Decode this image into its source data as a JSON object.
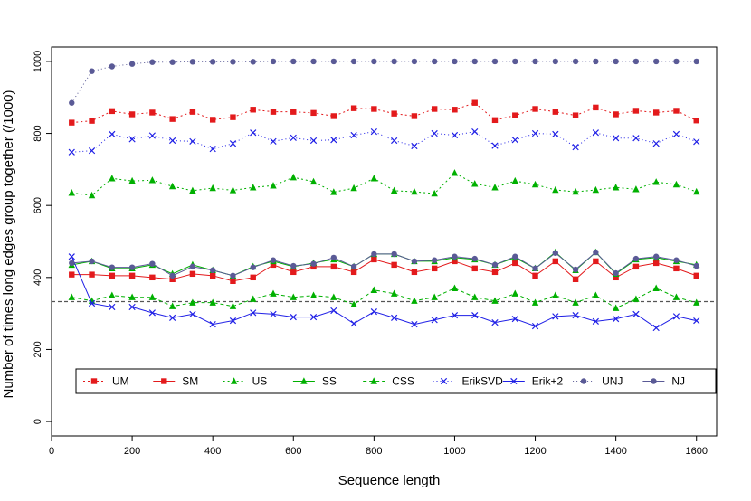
{
  "chart_data": {
    "type": "line",
    "title": "",
    "xlabel": "Sequence length",
    "ylabel": "Number of times long edges group together (/1000)",
    "xlim": [
      0,
      1650
    ],
    "ylim": [
      -40,
      1040
    ],
    "xticks": [
      0,
      200,
      400,
      600,
      800,
      1000,
      1200,
      1400,
      1600
    ],
    "yticks": [
      0,
      200,
      400,
      600,
      800,
      1000
    ],
    "reference_line": 333,
    "grid": false,
    "legend_position": "bottom",
    "x": [
      50,
      100,
      150,
      200,
      250,
      300,
      350,
      400,
      450,
      500,
      550,
      600,
      650,
      700,
      750,
      800,
      850,
      900,
      950,
      1000,
      1050,
      1100,
      1150,
      1200,
      1250,
      1300,
      1350,
      1400,
      1450,
      1500,
      1550,
      1600
    ],
    "series": [
      {
        "name": "UM",
        "color": "#e31a1c",
        "marker": "square",
        "dash": "2,3",
        "values": [
          830,
          835,
          862,
          853,
          858,
          840,
          860,
          838,
          845,
          866,
          860,
          860,
          857,
          848,
          870,
          868,
          855,
          848,
          868,
          866,
          885,
          837,
          850,
          868,
          860,
          850,
          872,
          853,
          863,
          858,
          863,
          836
        ]
      },
      {
        "name": "SM",
        "color": "#e31a1c",
        "marker": "square",
        "dash": "",
        "values": [
          408,
          408,
          405,
          405,
          400,
          395,
          410,
          405,
          390,
          400,
          435,
          415,
          430,
          430,
          415,
          450,
          435,
          415,
          425,
          445,
          425,
          415,
          440,
          405,
          445,
          395,
          445,
          400,
          430,
          440,
          425,
          405
        ]
      },
      {
        "name": "US",
        "color": "#00b000",
        "marker": "triangle",
        "dash": "2,3",
        "values": [
          635,
          628,
          675,
          668,
          670,
          653,
          641,
          648,
          642,
          650,
          655,
          678,
          666,
          637,
          648,
          675,
          641,
          638,
          633,
          690,
          660,
          650,
          668,
          658,
          643,
          638,
          643,
          650,
          645,
          665,
          658,
          638
        ]
      },
      {
        "name": "SS",
        "color": "#00b000",
        "marker": "triangle",
        "dash": "",
        "values": [
          435,
          445,
          425,
          425,
          435,
          410,
          435,
          420,
          405,
          430,
          445,
          430,
          440,
          450,
          430,
          465,
          465,
          445,
          445,
          455,
          450,
          435,
          455,
          425,
          470,
          420,
          470,
          410,
          450,
          455,
          445,
          435
        ]
      },
      {
        "name": "CSS",
        "color": "#00b000",
        "marker": "triangle",
        "dash": "4,3",
        "values": [
          345,
          335,
          350,
          345,
          345,
          320,
          330,
          330,
          320,
          340,
          355,
          345,
          350,
          345,
          325,
          365,
          355,
          335,
          345,
          370,
          345,
          335,
          355,
          330,
          350,
          330,
          350,
          315,
          340,
          370,
          345,
          330
        ]
      },
      {
        "name": "ErikSVD",
        "color": "#1f1fe6",
        "marker": "x",
        "dash": "1,3",
        "values": [
          748,
          752,
          798,
          784,
          794,
          780,
          778,
          757,
          772,
          802,
          778,
          788,
          780,
          782,
          795,
          805,
          780,
          765,
          800,
          795,
          805,
          766,
          782,
          800,
          798,
          762,
          802,
          787,
          787,
          772,
          798,
          777
        ]
      },
      {
        "name": "Erik+2",
        "color": "#1f1fe6",
        "marker": "x",
        "dash": "",
        "values": [
          458,
          328,
          318,
          318,
          302,
          288,
          298,
          270,
          280,
          302,
          298,
          290,
          290,
          308,
          272,
          305,
          288,
          270,
          282,
          295,
          295,
          275,
          285,
          265,
          292,
          295,
          278,
          285,
          298,
          260,
          292,
          280
        ]
      },
      {
        "name": "UNJ",
        "color": "#5a5a96",
        "marker": "circle",
        "dash": "1,3",
        "values": [
          885,
          973,
          986,
          993,
          998,
          998,
          999,
          999,
          999,
          999,
          1000,
          1000,
          1000,
          1000,
          1000,
          1000,
          1000,
          1000,
          1000,
          1000,
          1000,
          1000,
          1000,
          1000,
          1000,
          1000,
          1000,
          1000,
          1000,
          1000,
          1000,
          1000
        ]
      },
      {
        "name": "NJ",
        "color": "#5a5a96",
        "marker": "circle",
        "dash": "",
        "values": [
          440,
          445,
          428,
          428,
          438,
          405,
          430,
          420,
          405,
          428,
          448,
          432,
          438,
          455,
          430,
          465,
          465,
          445,
          448,
          458,
          452,
          435,
          458,
          425,
          468,
          422,
          470,
          412,
          452,
          458,
          448,
          432
        ]
      }
    ]
  }
}
